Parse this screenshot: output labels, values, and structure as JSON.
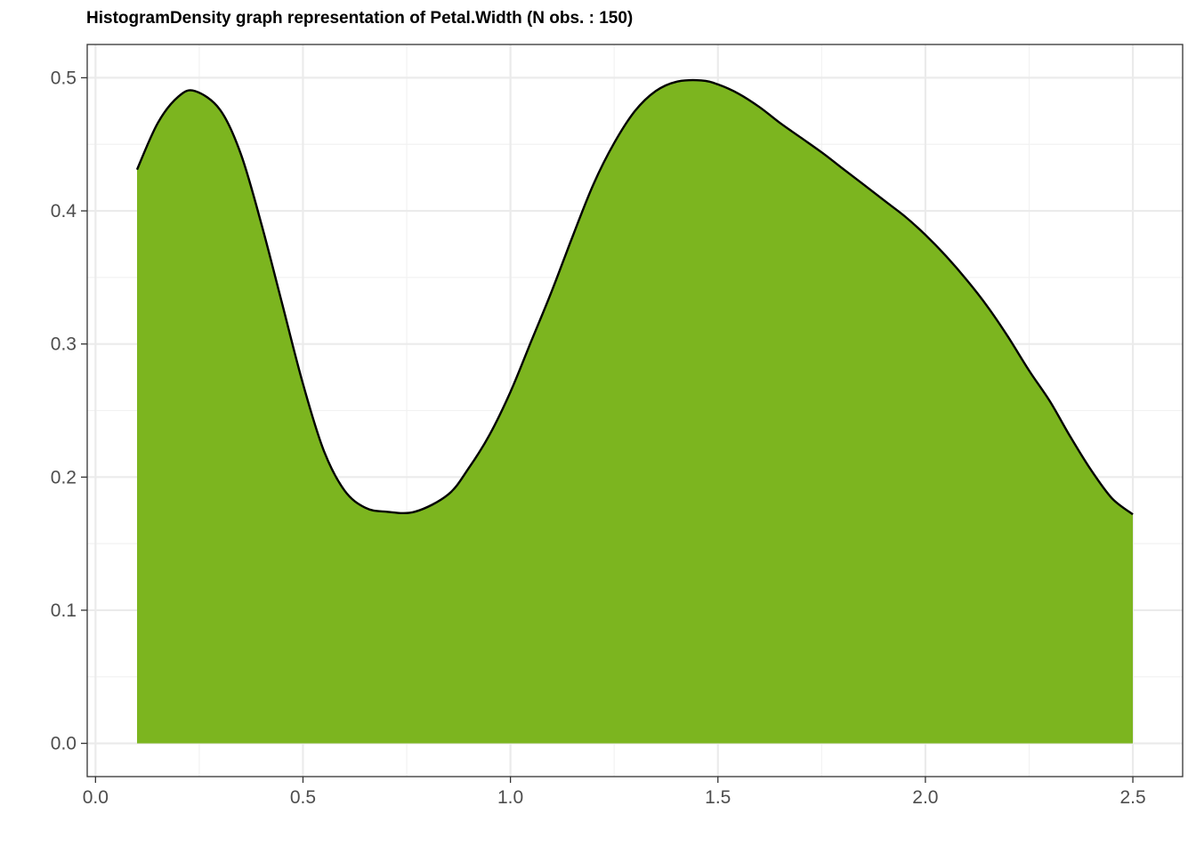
{
  "chart_data": {
    "type": "area",
    "title": "HistogramDensity graph representation of Petal.Width (N obs. : 150)",
    "xlabel": "",
    "ylabel": "",
    "xlim": [
      -0.02,
      2.62
    ],
    "ylim": [
      -0.025,
      0.525
    ],
    "x_ticks": [
      0.0,
      0.5,
      1.0,
      1.5,
      2.0,
      2.5
    ],
    "x_tick_labels": [
      "0.0",
      "0.5",
      "1.0",
      "1.5",
      "2.0",
      "2.5"
    ],
    "y_ticks": [
      0.0,
      0.1,
      0.2,
      0.3,
      0.4,
      0.5
    ],
    "y_tick_labels": [
      "0.0",
      "0.1",
      "0.2",
      "0.3",
      "0.4",
      "0.5"
    ],
    "grid": true,
    "fill_color": "#7cb51f",
    "line_color": "#000000",
    "x": [
      0.1,
      0.15,
      0.2,
      0.24,
      0.3,
      0.35,
      0.4,
      0.45,
      0.5,
      0.55,
      0.6,
      0.65,
      0.7,
      0.77,
      0.85,
      0.9,
      0.95,
      1.0,
      1.05,
      1.1,
      1.15,
      1.2,
      1.25,
      1.3,
      1.35,
      1.4,
      1.46,
      1.5,
      1.55,
      1.6,
      1.65,
      1.7,
      1.75,
      1.8,
      1.85,
      1.9,
      1.95,
      2.0,
      2.05,
      2.1,
      2.15,
      2.2,
      2.25,
      2.3,
      2.35,
      2.4,
      2.45,
      2.5
    ],
    "y": [
      0.431,
      0.466,
      0.486,
      0.49,
      0.476,
      0.443,
      0.39,
      0.33,
      0.27,
      0.22,
      0.19,
      0.177,
      0.174,
      0.174,
      0.187,
      0.207,
      0.232,
      0.264,
      0.302,
      0.34,
      0.381,
      0.42,
      0.451,
      0.475,
      0.49,
      0.497,
      0.498,
      0.495,
      0.488,
      0.478,
      0.466,
      0.455,
      0.444,
      0.432,
      0.42,
      0.408,
      0.396,
      0.382,
      0.366,
      0.348,
      0.328,
      0.305,
      0.28,
      0.257,
      0.23,
      0.205,
      0.184,
      0.172
    ]
  }
}
